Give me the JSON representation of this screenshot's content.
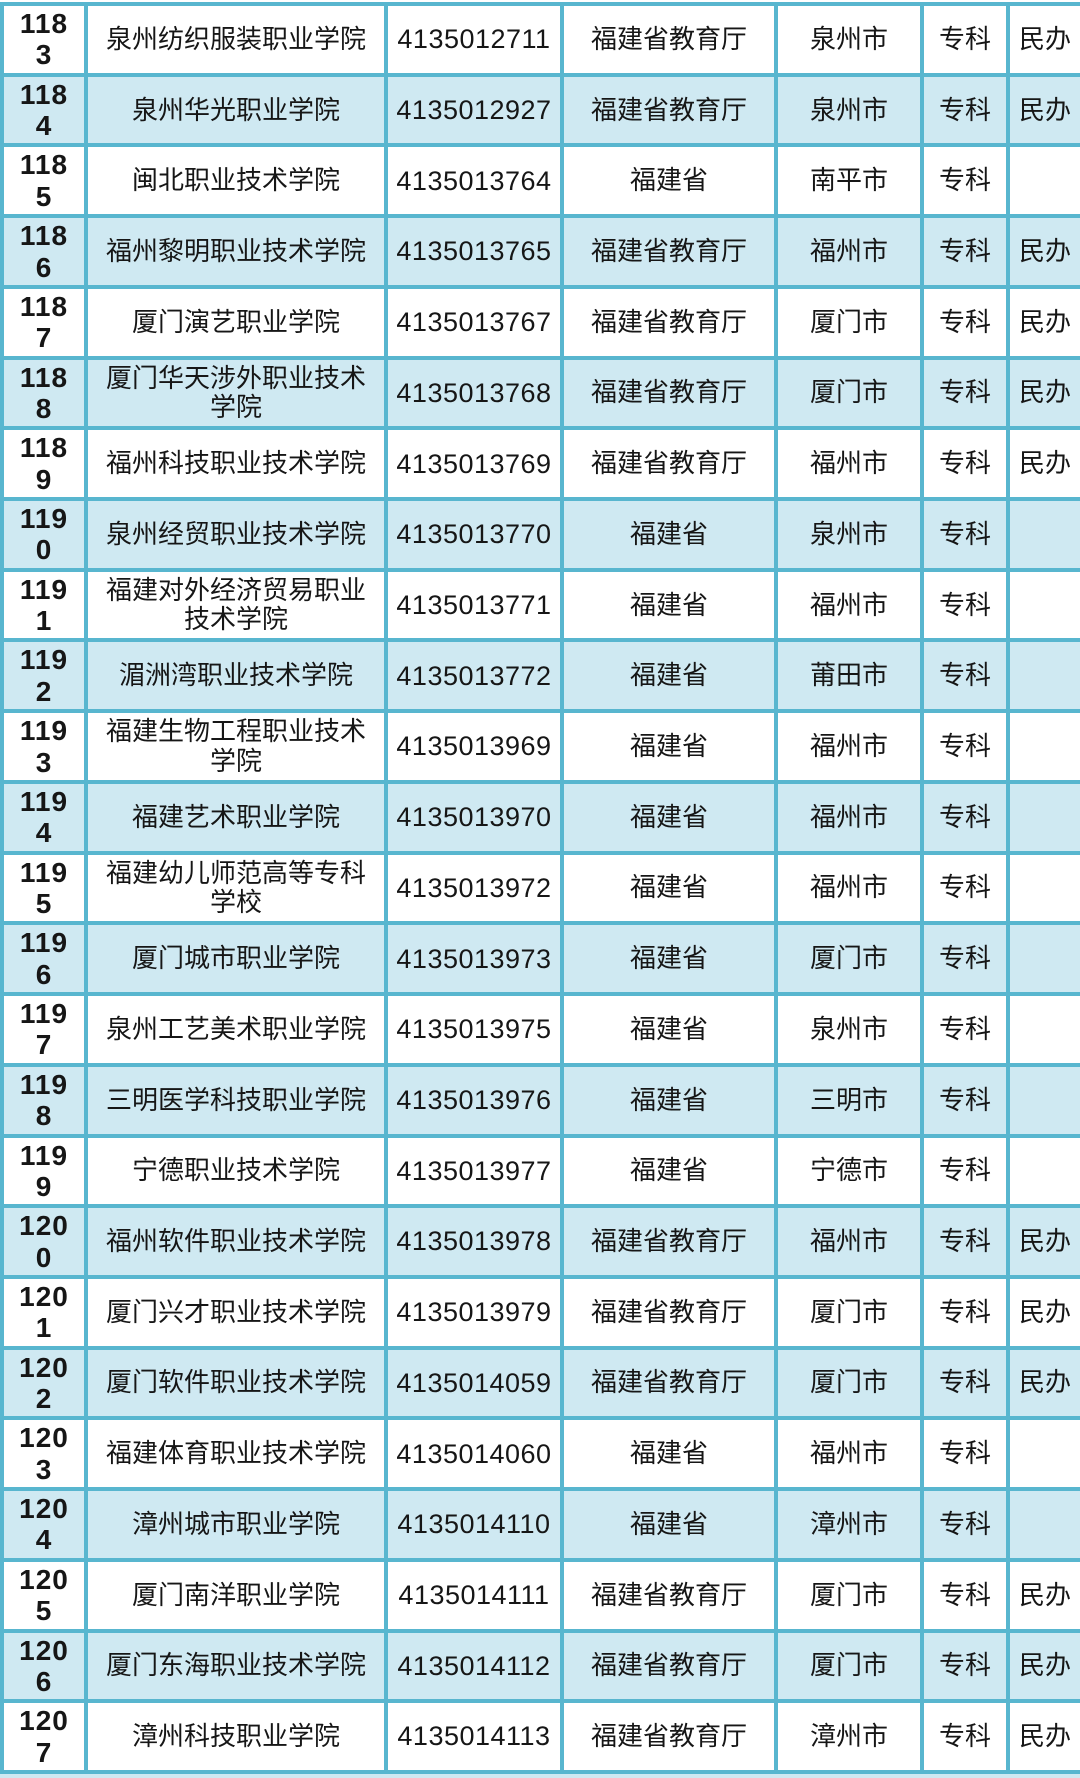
{
  "colors": {
    "border": "#58b6cf",
    "row_alternate": "#cfe9f2",
    "row_default": "#ffffff",
    "text": "#161616"
  },
  "table": {
    "columns": [
      {
        "key": "seq",
        "name": "sequence-number"
      },
      {
        "key": "name",
        "name": "institution-name"
      },
      {
        "key": "code",
        "name": "institution-code"
      },
      {
        "key": "authority",
        "name": "supervising-authority"
      },
      {
        "key": "city",
        "name": "city"
      },
      {
        "key": "level",
        "name": "education-level"
      },
      {
        "key": "remark",
        "name": "ownership-remark"
      }
    ],
    "rows": [
      {
        "seq": "1183",
        "name": "泉州纺织服装职业学院",
        "code": "4135012711",
        "authority": "福建省教育厅",
        "city": "泉州市",
        "level": "专科",
        "remark": "民办"
      },
      {
        "seq": "1184",
        "name": "泉州华光职业学院",
        "code": "4135012927",
        "authority": "福建省教育厅",
        "city": "泉州市",
        "level": "专科",
        "remark": "民办"
      },
      {
        "seq": "1185",
        "name": "闽北职业技术学院",
        "code": "4135013764",
        "authority": "福建省",
        "city": "南平市",
        "level": "专科",
        "remark": ""
      },
      {
        "seq": "1186",
        "name": "福州黎明职业技术学院",
        "code": "4135013765",
        "authority": "福建省教育厅",
        "city": "福州市",
        "level": "专科",
        "remark": "民办"
      },
      {
        "seq": "1187",
        "name": "厦门演艺职业学院",
        "code": "4135013767",
        "authority": "福建省教育厅",
        "city": "厦门市",
        "level": "专科",
        "remark": "民办"
      },
      {
        "seq": "1188",
        "name": "厦门华天涉外职业技术学院",
        "code": "4135013768",
        "authority": "福建省教育厅",
        "city": "厦门市",
        "level": "专科",
        "remark": "民办"
      },
      {
        "seq": "1189",
        "name": "福州科技职业技术学院",
        "code": "4135013769",
        "authority": "福建省教育厅",
        "city": "福州市",
        "level": "专科",
        "remark": "民办"
      },
      {
        "seq": "1190",
        "name": "泉州经贸职业技术学院",
        "code": "4135013770",
        "authority": "福建省",
        "city": "泉州市",
        "level": "专科",
        "remark": ""
      },
      {
        "seq": "1191",
        "name": "福建对外经济贸易职业技术学院",
        "code": "4135013771",
        "authority": "福建省",
        "city": "福州市",
        "level": "专科",
        "remark": ""
      },
      {
        "seq": "1192",
        "name": "湄洲湾职业技术学院",
        "code": "4135013772",
        "authority": "福建省",
        "city": "莆田市",
        "level": "专科",
        "remark": ""
      },
      {
        "seq": "1193",
        "name": "福建生物工程职业技术学院",
        "code": "4135013969",
        "authority": "福建省",
        "city": "福州市",
        "level": "专科",
        "remark": ""
      },
      {
        "seq": "1194",
        "name": "福建艺术职业学院",
        "code": "4135013970",
        "authority": "福建省",
        "city": "福州市",
        "level": "专科",
        "remark": ""
      },
      {
        "seq": "1195",
        "name": "福建幼儿师范高等专科学校",
        "code": "4135013972",
        "authority": "福建省",
        "city": "福州市",
        "level": "专科",
        "remark": ""
      },
      {
        "seq": "1196",
        "name": "厦门城市职业学院",
        "code": "4135013973",
        "authority": "福建省",
        "city": "厦门市",
        "level": "专科",
        "remark": ""
      },
      {
        "seq": "1197",
        "name": "泉州工艺美术职业学院",
        "code": "4135013975",
        "authority": "福建省",
        "city": "泉州市",
        "level": "专科",
        "remark": ""
      },
      {
        "seq": "1198",
        "name": "三明医学科技职业学院",
        "code": "4135013976",
        "authority": "福建省",
        "city": "三明市",
        "level": "专科",
        "remark": ""
      },
      {
        "seq": "1199",
        "name": "宁德职业技术学院",
        "code": "4135013977",
        "authority": "福建省",
        "city": "宁德市",
        "level": "专科",
        "remark": ""
      },
      {
        "seq": "1200",
        "name": "福州软件职业技术学院",
        "code": "4135013978",
        "authority": "福建省教育厅",
        "city": "福州市",
        "level": "专科",
        "remark": "民办"
      },
      {
        "seq": "1201",
        "name": "厦门兴才职业技术学院",
        "code": "4135013979",
        "authority": "福建省教育厅",
        "city": "厦门市",
        "level": "专科",
        "remark": "民办"
      },
      {
        "seq": "1202",
        "name": "厦门软件职业技术学院",
        "code": "4135014059",
        "authority": "福建省教育厅",
        "city": "厦门市",
        "level": "专科",
        "remark": "民办"
      },
      {
        "seq": "1203",
        "name": "福建体育职业技术学院",
        "code": "4135014060",
        "authority": "福建省",
        "city": "福州市",
        "level": "专科",
        "remark": ""
      },
      {
        "seq": "1204",
        "name": "漳州城市职业学院",
        "code": "4135014110",
        "authority": "福建省",
        "city": "漳州市",
        "level": "专科",
        "remark": ""
      },
      {
        "seq": "1205",
        "name": "厦门南洋职业学院",
        "code": "4135014111",
        "authority": "福建省教育厅",
        "city": "厦门市",
        "level": "专科",
        "remark": "民办"
      },
      {
        "seq": "1206",
        "name": "厦门东海职业技术学院",
        "code": "4135014112",
        "authority": "福建省教育厅",
        "city": "厦门市",
        "level": "专科",
        "remark": "民办"
      },
      {
        "seq": "1207",
        "name": "漳州科技职业学院",
        "code": "4135014113",
        "authority": "福建省教育厅",
        "city": "漳州市",
        "level": "专科",
        "remark": "民办"
      }
    ]
  }
}
